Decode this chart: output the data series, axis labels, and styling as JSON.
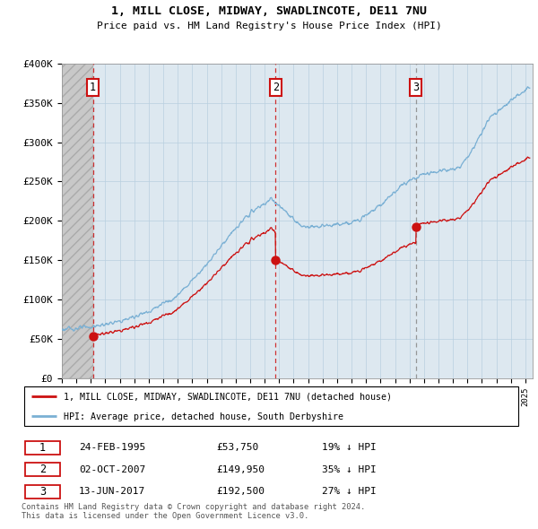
{
  "title1": "1, MILL CLOSE, MIDWAY, SWADLINCOTE, DE11 7NU",
  "title2": "Price paid vs. HM Land Registry's House Price Index (HPI)",
  "sale_dates_dec": [
    1995.14,
    2007.75,
    2017.45
  ],
  "sale_prices": [
    53750,
    149950,
    192500
  ],
  "sale_labels": [
    "1",
    "2",
    "3"
  ],
  "hpi_color": "#7ab0d4",
  "price_color": "#cc1111",
  "vline_colors": [
    "#cc1111",
    "#cc1111",
    "#888888"
  ],
  "vline_styles": [
    "dashed",
    "dashed",
    "dashed"
  ],
  "bg_hatch_color": "#cccccc",
  "bg_main_color": "#dde8f0",
  "grid_color": "#b8cfe0",
  "ylim": [
    0,
    400000
  ],
  "yticks": [
    0,
    50000,
    100000,
    150000,
    200000,
    250000,
    300000,
    350000,
    400000
  ],
  "ytick_labels": [
    "£0",
    "£50K",
    "£100K",
    "£150K",
    "£200K",
    "£250K",
    "£300K",
    "£350K",
    "£400K"
  ],
  "xlim_start": 1993.0,
  "xlim_end": 2025.5,
  "legend_line1": "1, MILL CLOSE, MIDWAY, SWADLINCOTE, DE11 7NU (detached house)",
  "legend_line2": "HPI: Average price, detached house, South Derbyshire",
  "table_rows": [
    [
      "1",
      "24-FEB-1995",
      "£53,750",
      "19% ↓ HPI"
    ],
    [
      "2",
      "02-OCT-2007",
      "£149,950",
      "35% ↓ HPI"
    ],
    [
      "3",
      "13-JUN-2017",
      "£192,500",
      "27% ↓ HPI"
    ]
  ],
  "footer": "Contains HM Land Registry data © Crown copyright and database right 2024.\nThis data is licensed under the Open Government Licence v3.0."
}
